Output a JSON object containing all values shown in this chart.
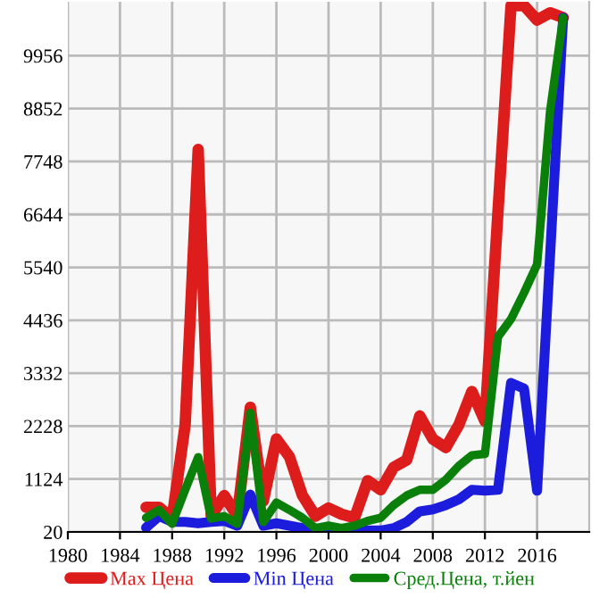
{
  "chart_data": {
    "type": "line",
    "x": [
      1986,
      1987,
      1988,
      1989,
      1990,
      1991,
      1992,
      1993,
      1994,
      1995,
      1996,
      1997,
      1998,
      1999,
      2000,
      2001,
      2002,
      2003,
      2004,
      2005,
      2006,
      2007,
      2008,
      2009,
      2010,
      2011,
      2012,
      2013,
      2014,
      2015,
      2016,
      2017,
      2018
    ],
    "series": [
      {
        "name": "Max Цена",
        "color": "#dd1c1c",
        "values": [
          535,
          535,
          305,
          2254,
          8000,
          350,
          780,
          350,
          2620,
          670,
          1960,
          1590,
          780,
          350,
          520,
          390,
          315,
          1090,
          900,
          1370,
          1520,
          2440,
          1960,
          1780,
          2254,
          2950,
          2330,
          6700,
          11000,
          11000,
          10700,
          10850,
          10750
        ]
      },
      {
        "name": "Min Цена",
        "color": "#1c1cdd",
        "values": [
          110,
          350,
          230,
          230,
          200,
          230,
          250,
          150,
          800,
          150,
          200,
          150,
          100,
          20,
          20,
          20,
          20,
          50,
          50,
          100,
          230,
          450,
          490,
          580,
          700,
          900,
          880,
          900,
          3130,
          3010,
          880,
          5800,
          10750
        ]
      },
      {
        "name": "Сред.Цена, т.йен",
        "color": "#0a800a",
        "values": [
          315,
          480,
          190,
          900,
          1580,
          300,
          350,
          190,
          2500,
          230,
          630,
          480,
          315,
          100,
          150,
          100,
          150,
          250,
          315,
          580,
          780,
          900,
          900,
          1110,
          1400,
          1620,
          1650,
          4090,
          4460,
          5010,
          5600,
          8800,
          10750
        ]
      }
    ],
    "xlim": [
      1980,
      2020
    ],
    "xticks": [
      1980,
      1984,
      1988,
      1992,
      1996,
      2000,
      2004,
      2008,
      2012,
      2016
    ],
    "ylim": [
      20,
      11080
    ],
    "yticks": [
      20,
      1124,
      2228,
      3332,
      4436,
      5540,
      6644,
      7748,
      8852,
      9956
    ],
    "grid": true,
    "legend": "bottom",
    "marker": "none",
    "line_style": "solid"
  }
}
